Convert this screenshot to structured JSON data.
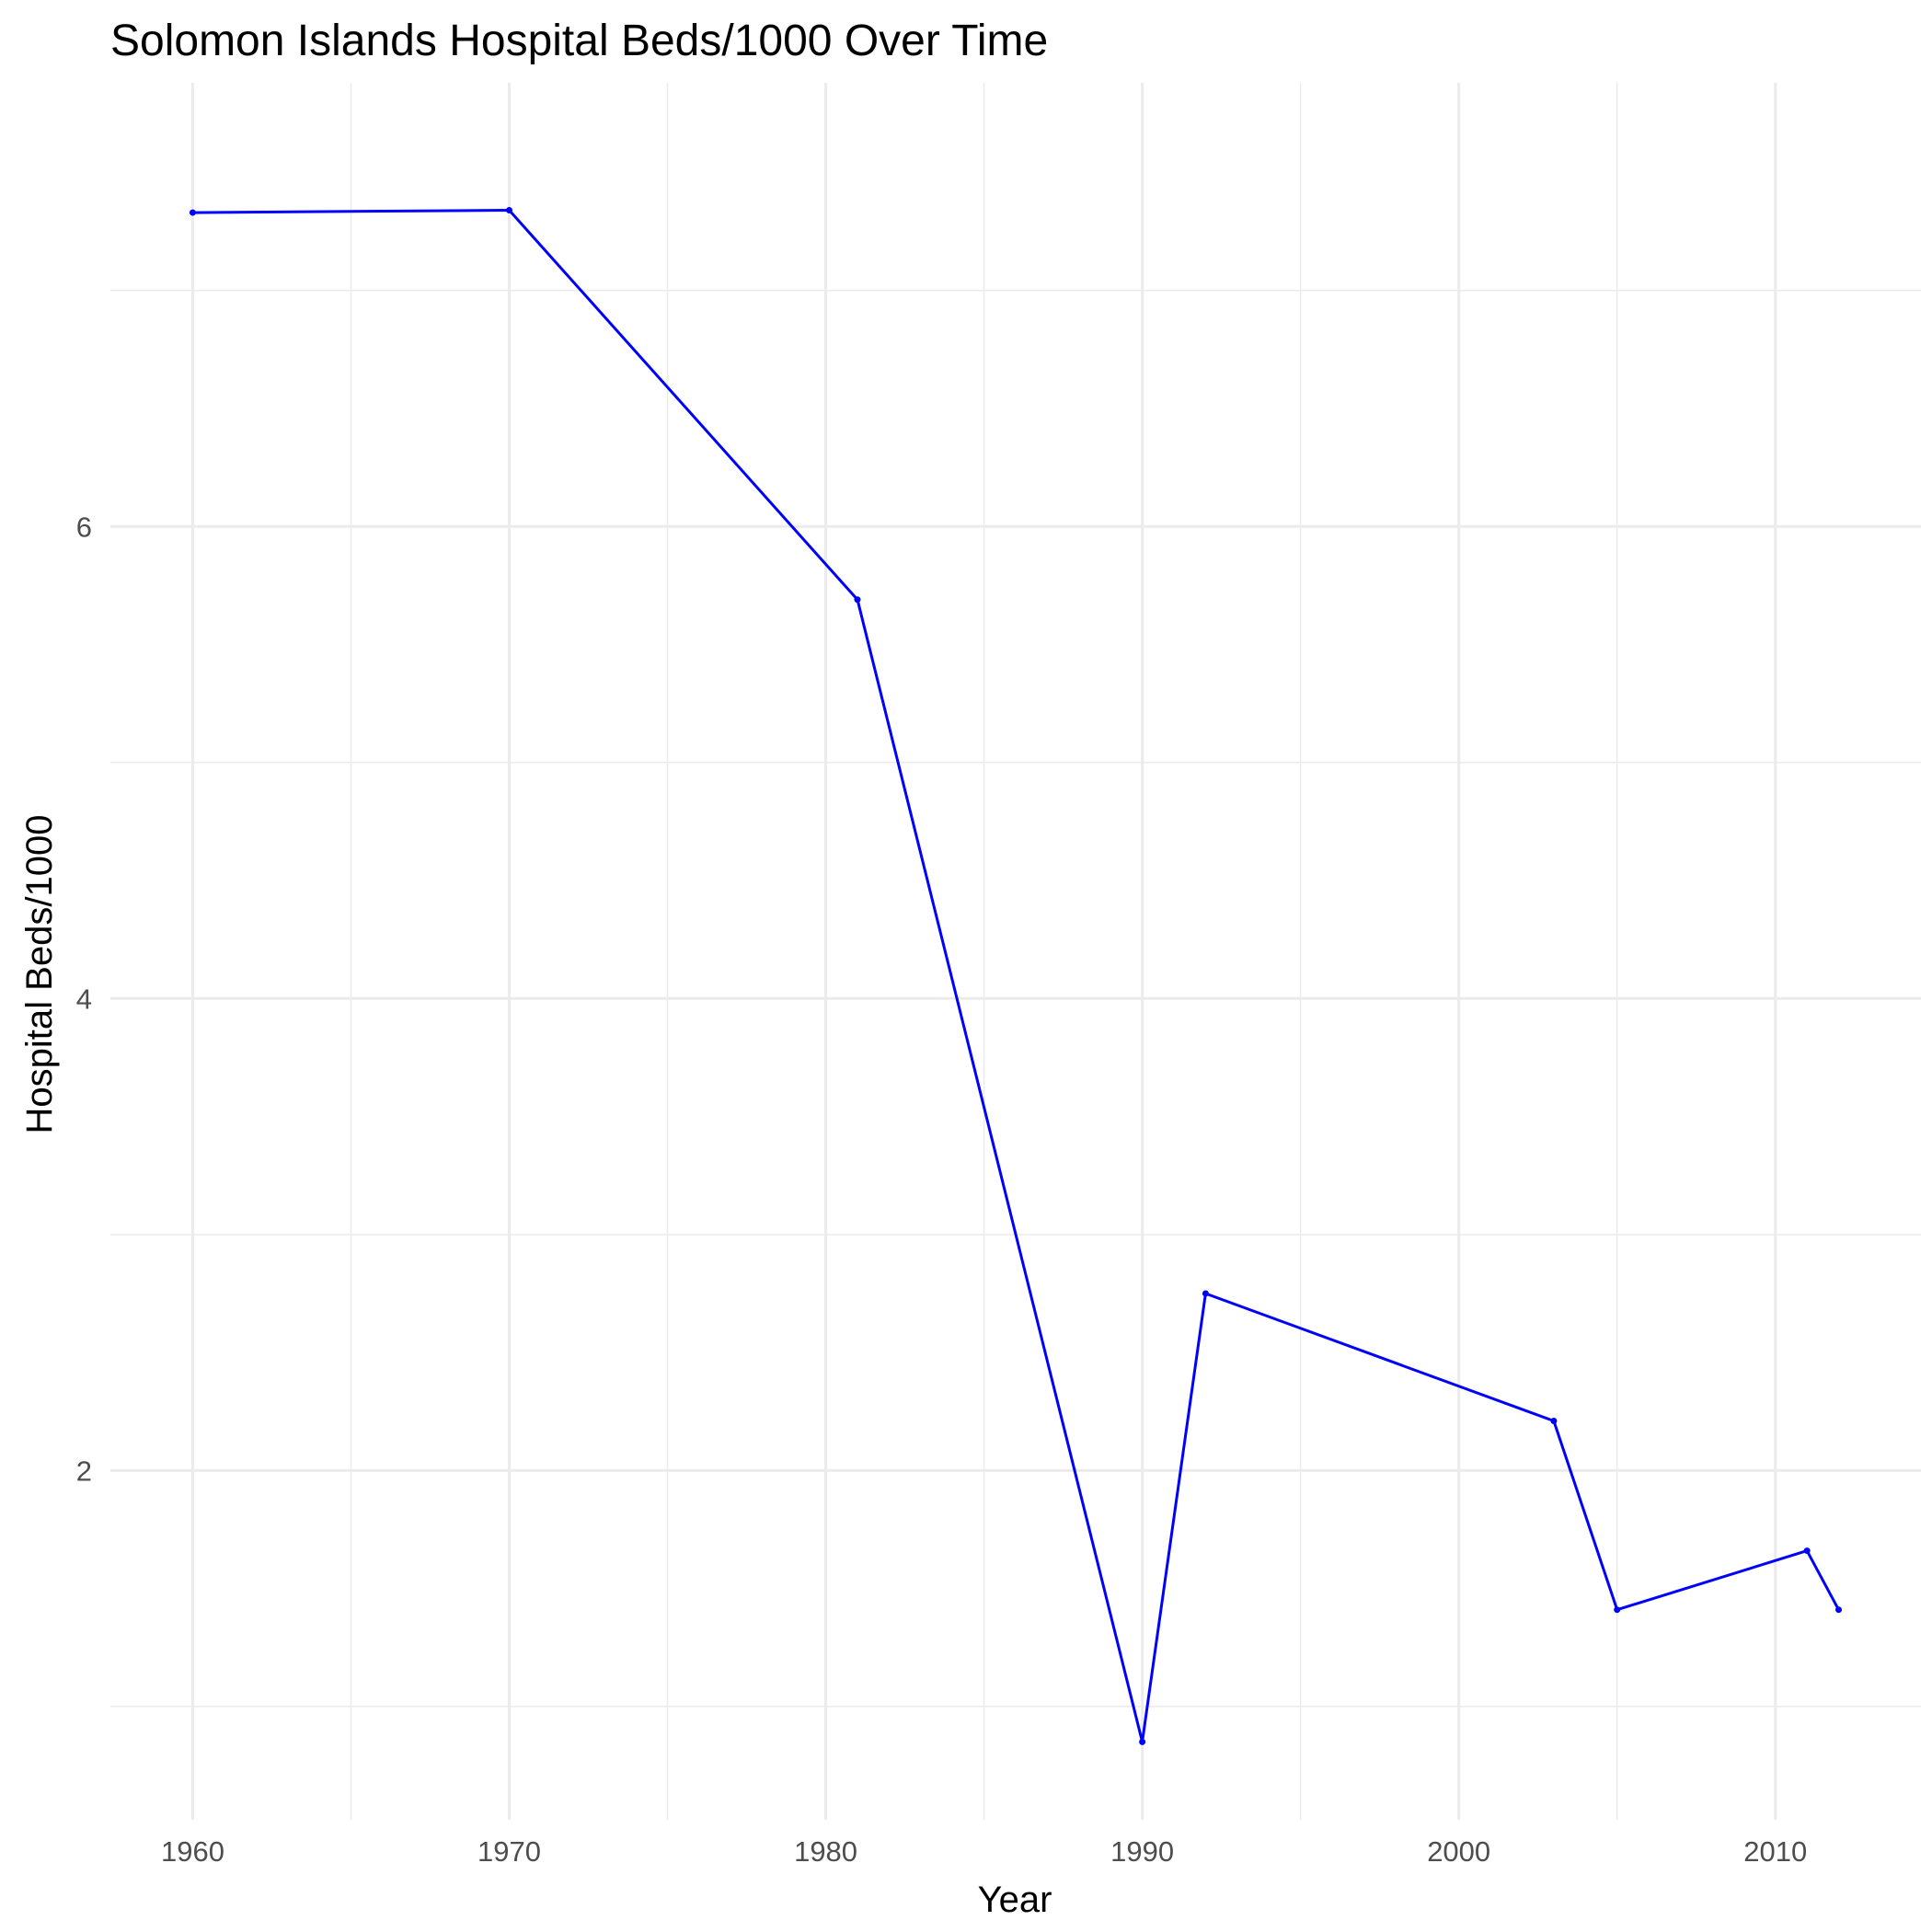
{
  "chart_data": {
    "type": "line",
    "title": "Solomon Islands Hospital Beds/1000 Over Time",
    "xlabel": "Year",
    "ylabel": "Hospital Beds/1000",
    "xlim": [
      1957.4,
      2014.6
    ],
    "ylim": [
      0.52,
      7.88
    ],
    "x_ticks": [
      1960,
      1970,
      1980,
      1990,
      2000,
      2010
    ],
    "y_ticks": [
      2,
      4,
      6
    ],
    "grid": true,
    "legend": "none",
    "series": [
      {
        "color": "#0000ff",
        "x": [
          1960,
          1970,
          1981,
          1990,
          1992,
          2003,
          2005,
          2011,
          2012
        ],
        "y": [
          7.33,
          7.34,
          5.69,
          0.85,
          2.75,
          2.21,
          1.41,
          1.66,
          1.41
        ]
      }
    ]
  }
}
